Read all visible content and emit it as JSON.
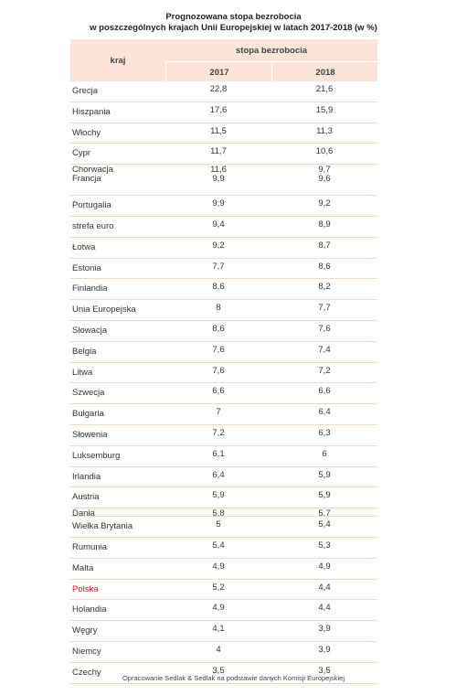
{
  "title_line1": "Prognozowana stopa bezrobocia",
  "title_line2": "w poszczególnych krajach Unii Europejskiej w latach 2017-2018 (w %)",
  "header": {
    "col_country": "kraj",
    "group": "stopa bezrobocia",
    "year1": "2017",
    "year2": "2018"
  },
  "rows": [
    {
      "country": "Grecja",
      "v2017": "22,8",
      "v2018": "21,6"
    },
    {
      "country": "Hiszpania",
      "v2017": "17,6",
      "v2018": "15,9"
    },
    {
      "country": "Włochy",
      "v2017": "11,5",
      "v2018": "11,3"
    },
    {
      "country": "Cypr",
      "v2017": "11,7",
      "v2018": "10,6"
    },
    {
      "country": "Chorwacja",
      "v2017": "11,6",
      "v2018": "9,7",
      "country_b": "Francja",
      "v2017_b": "9,9",
      "v2018_b": "9,6"
    },
    {
      "country": "Portugalia",
      "v2017": "9,9",
      "v2018": "9,2"
    },
    {
      "country": "strefa euro",
      "v2017": "9,4",
      "v2018": "8,9"
    },
    {
      "country": "Łotwa",
      "v2017": "9,2",
      "v2018": "8,7"
    },
    {
      "country": "Estonia",
      "v2017": "7,7",
      "v2018": "8,6"
    },
    {
      "country": "Finlandia",
      "v2017": "8,6",
      "v2018": "8,2"
    },
    {
      "country": "Unia Europejska",
      "v2017": "8",
      "v2018": "7,7"
    },
    {
      "country": "Słowacja",
      "v2017": "8,6",
      "v2018": "7,6"
    },
    {
      "country": "Belgia",
      "v2017": "7,6",
      "v2018": "7,4"
    },
    {
      "country": "Litwa",
      "v2017": "7,6",
      "v2018": "7,2"
    },
    {
      "country": "Szwecja",
      "v2017": "6,6",
      "v2018": "6,6"
    },
    {
      "country": "Bułgaria",
      "v2017": "7",
      "v2018": "6,4"
    },
    {
      "country": "Słowenia",
      "v2017": "7,2",
      "v2018": "6,3"
    },
    {
      "country": "Luksemburg",
      "v2017": "6,1",
      "v2018": "6"
    },
    {
      "country": "Irlandia",
      "v2017": "6,4",
      "v2018": "5,9"
    },
    {
      "country": "Austria",
      "v2017": "5,9",
      "v2018": "5,9"
    },
    {
      "country": "Dania",
      "v2017": "5,8",
      "v2018": "5,7"
    },
    {
      "country": "Wielka Brytania",
      "v2017": "5",
      "v2018": "5,4"
    },
    {
      "country": "Rumunia",
      "v2017": "5,4",
      "v2018": "5,3"
    },
    {
      "country": "Malta",
      "v2017": "4,9",
      "v2018": "4,9"
    },
    {
      "country": "Polska",
      "v2017": "5,2",
      "v2018": "4,4",
      "highlight": "#d42020"
    },
    {
      "country": "Holandia",
      "v2017": "4,9",
      "v2018": "4,4"
    },
    {
      "country": "Węgry",
      "v2017": "4,1",
      "v2018": "3,9"
    },
    {
      "country": "Niemcy",
      "v2017": "4",
      "v2018": "3,9"
    },
    {
      "country": "Czechy",
      "v2017": "3,5",
      "v2018": "3,5"
    }
  ],
  "footer": "Opracowanie Sedlak & Sedlak na podstawie danych Komisji Europejskiej"
}
